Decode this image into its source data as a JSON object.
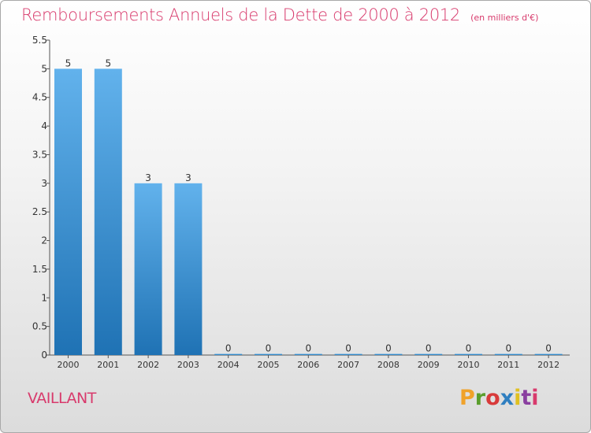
{
  "header": {
    "title": "Remboursements Annuels de la Dette de 2000 à 2012",
    "unit": "(en milliers d'€)"
  },
  "commune": "VAILLANT",
  "logo": {
    "text": "Proxiti",
    "colors": [
      "#f0a22a",
      "#5a9d2c",
      "#d83a3a",
      "#2f7fc0",
      "#e0c020",
      "#8a3fa0",
      "#d83a6c"
    ]
  },
  "colors": {
    "bar_top": "#62b2ec",
    "bar_bottom": "#1f72b4",
    "title": "#d83a6c"
  },
  "chart_data": {
    "type": "bar",
    "title": "Remboursements Annuels de la Dette de 2000 à 2012",
    "ylabel": "",
    "xlabel": "",
    "ylim": [
      0,
      5.5
    ],
    "yticks": [
      "0",
      "0.5",
      "1",
      "1.5",
      "2",
      "2.5",
      "3",
      "3.5",
      "4",
      "4.5",
      "5",
      "5.5"
    ],
    "grid": false,
    "categories": [
      "2000",
      "2001",
      "2002",
      "2003",
      "2004",
      "2005",
      "2006",
      "2007",
      "2008",
      "2009",
      "2010",
      "2011",
      "2012"
    ],
    "values": [
      5,
      5,
      3,
      3,
      0,
      0,
      0,
      0,
      0,
      0,
      0,
      0,
      0
    ],
    "labels": [
      "5",
      "5",
      "3",
      "3",
      "0",
      "0",
      "0",
      "0",
      "0",
      "0",
      "0",
      "0",
      "0"
    ]
  }
}
